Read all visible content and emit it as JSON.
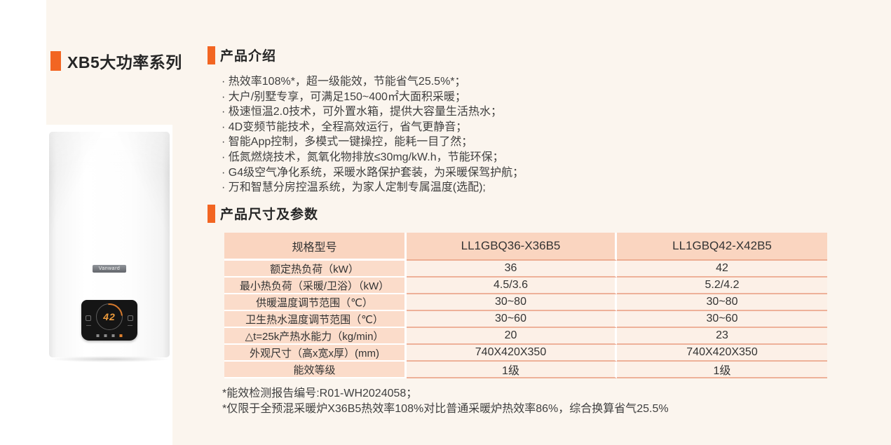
{
  "page": {
    "accent_color": "#f26522",
    "title": "XB5大功率系列"
  },
  "product_image": {
    "brand_label": "Vanward",
    "display_value": "42"
  },
  "sections": {
    "intro": {
      "heading": "产品介绍",
      "bullets": [
        "· 热效率108%*，超一级能效，节能省气25.5%*；",
        "· 大户/别墅专享，可满足150~400㎡大面积采暖；",
        "· 极速恒温2.0技术，可外置水箱，提供大容量生活热水；",
        "· 4D变频节能技术，全程高效运行，省气更静音；",
        "· 智能App控制，多模式一键操控，能耗一目了然；",
        "· 低氮燃烧技术，氮氧化物排放≤30mg/kW.h，节能环保；",
        "· G4级空气净化系统，采暖水路保护套装，为采暖保驾护航；",
        "· 万和智慧分房控温系统，为家人定制专属温度(选配);"
      ]
    },
    "specs": {
      "heading": "产品尺寸及参数",
      "table": {
        "headers": [
          "规格型号",
          "LL1GBQ36-X36B5",
          "LL1GBQ42-X42B5"
        ],
        "rows": [
          {
            "label": "额定热负荷（kW）",
            "v1": "36",
            "v2": "42"
          },
          {
            "label": "最小热负荷（采暖/卫浴）（kW）",
            "v1": "4.5/3.6",
            "v2": "5.2/4.2"
          },
          {
            "label": "供暖温度调节范围（℃）",
            "v1": "30~80",
            "v2": "30~80"
          },
          {
            "label": "卫生热水温度调节范围（℃）",
            "v1": "30~60",
            "v2": "30~60"
          },
          {
            "label": "△t=25k产热水能力（kg/min）",
            "v1": "20",
            "v2": "23"
          },
          {
            "label": "外观尺寸（高x宽x厚）(mm)",
            "v1": "740X420X350",
            "v2": "740X420X350"
          },
          {
            "label": "能效等级",
            "v1": "1级",
            "v2": "1级"
          }
        ]
      },
      "footnotes": [
        "*能效检测报告编号:R01-WH2024058；",
        "*仅限于全预混采暖炉X36B5热效率108%对比普通采暖炉热效率86%，综合换算省气25.5%"
      ]
    }
  }
}
